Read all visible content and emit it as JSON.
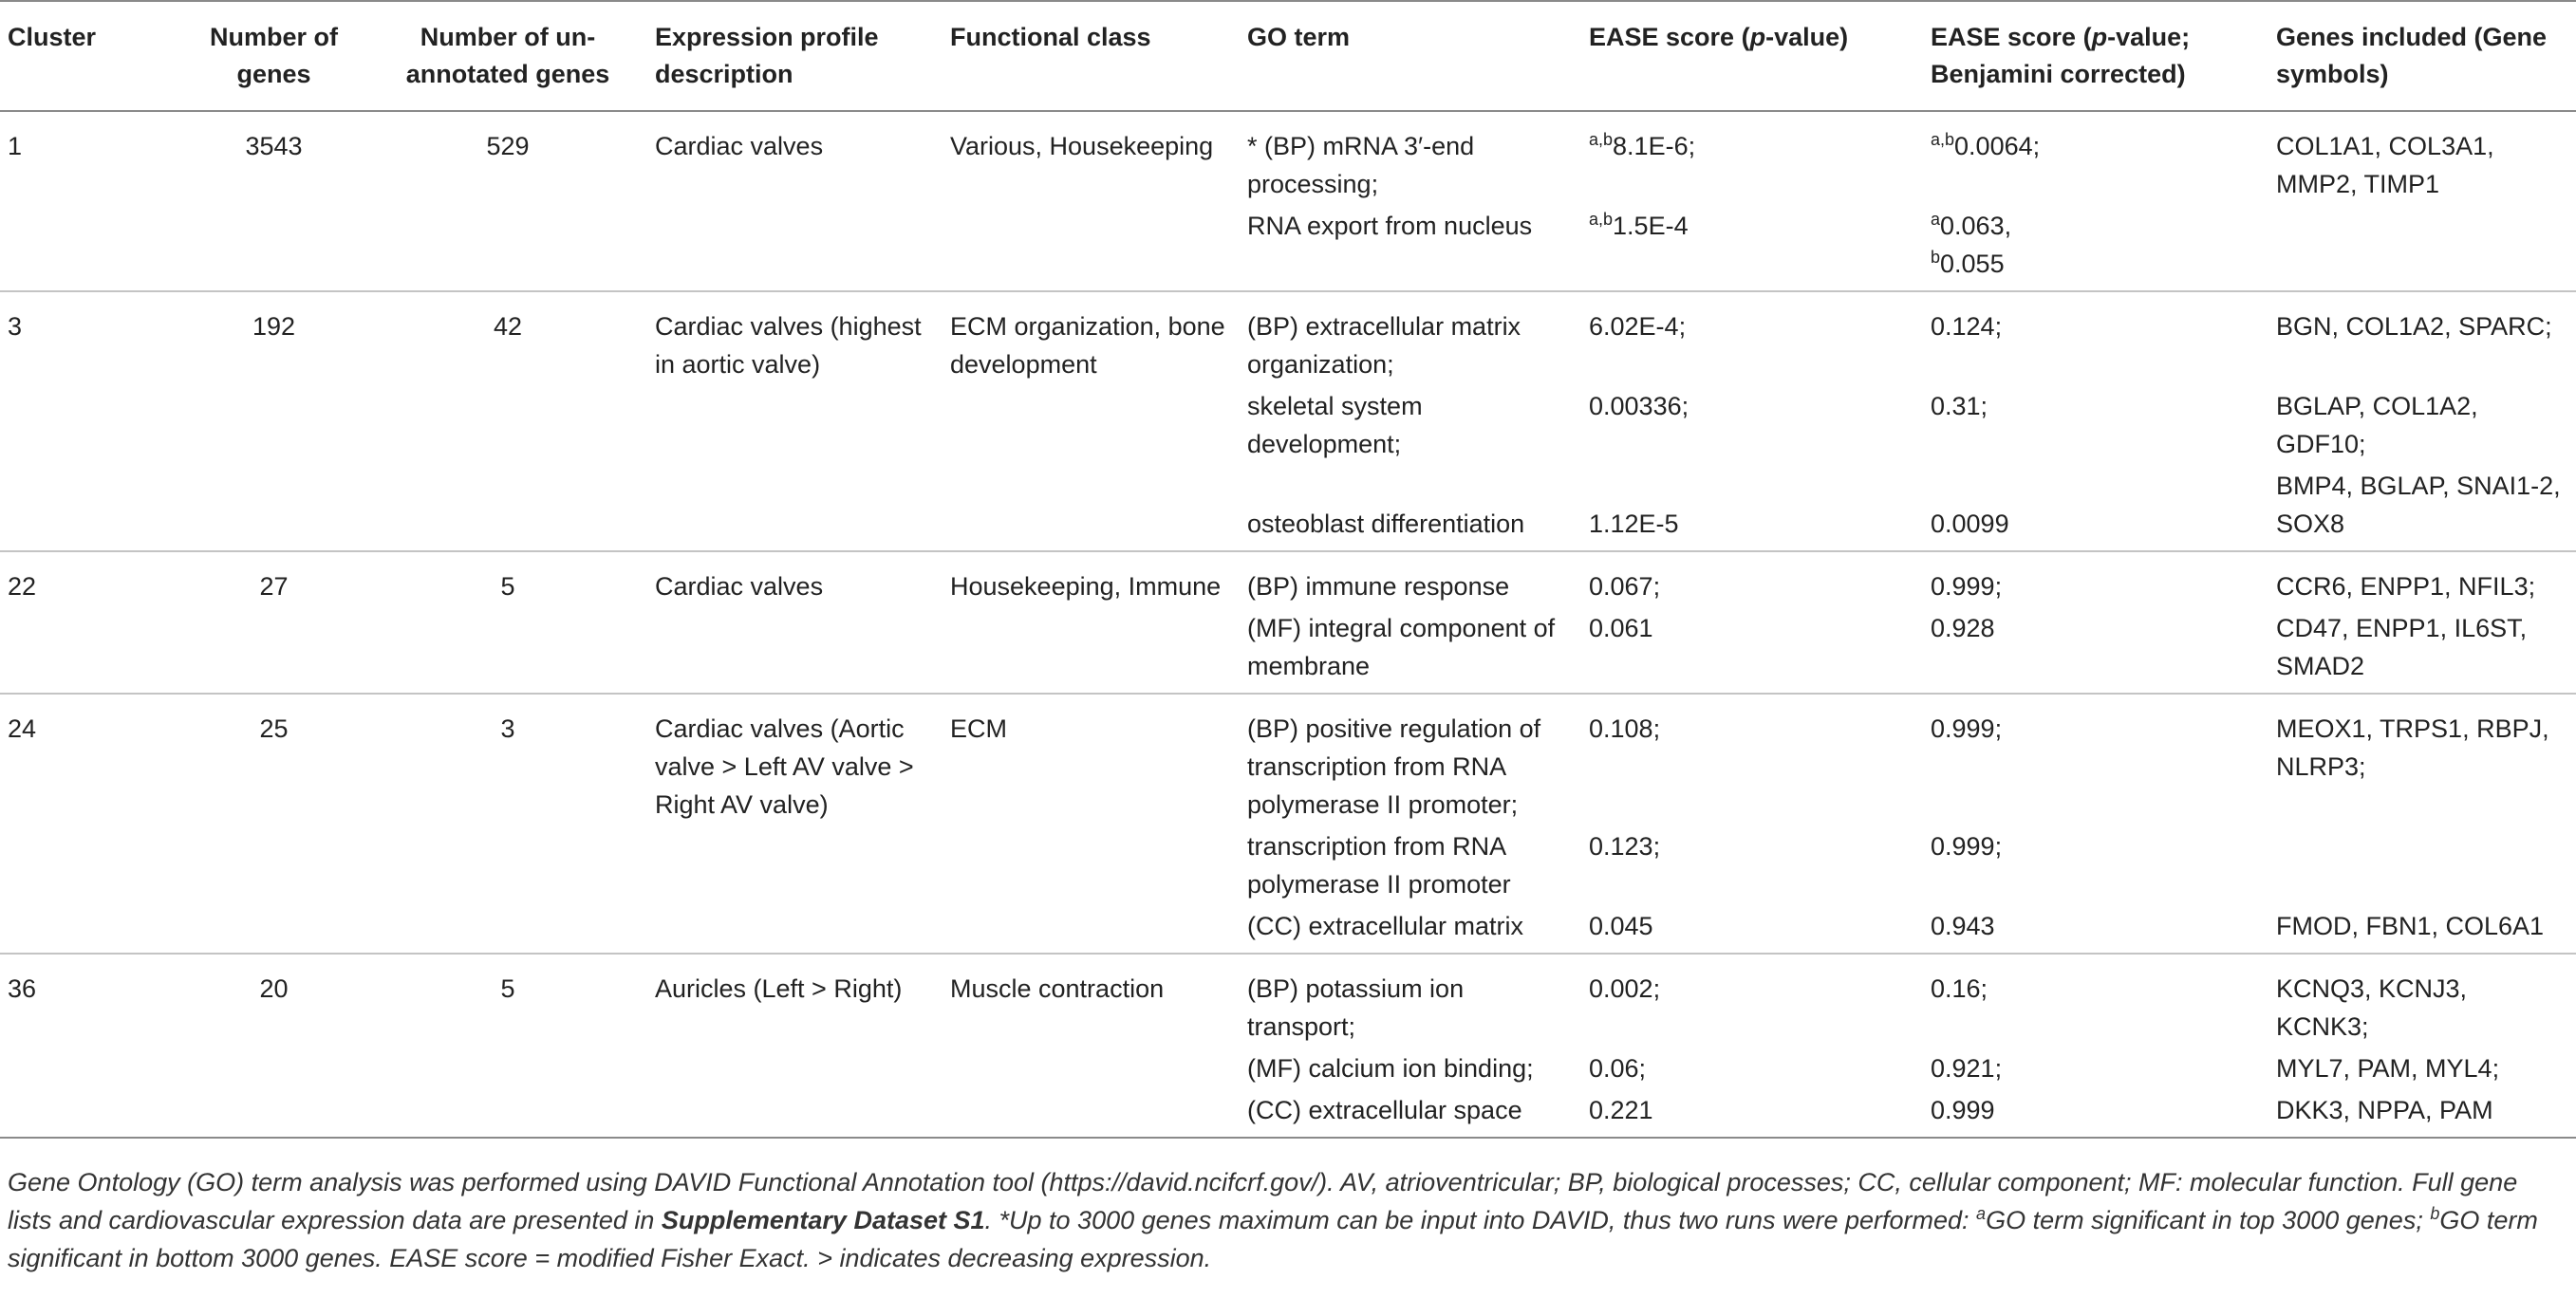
{
  "headers": {
    "cluster": "Cluster",
    "num_genes": "Number of genes",
    "unannotated": "Number of un-annotated genes",
    "profile": "Expression profile description",
    "functional_class": "Functional class",
    "go_term": "GO term",
    "ease_prefix": "EASE score (",
    "ease_p": "p",
    "ease_suffix": "-value)",
    "ease_b_prefix": "EASE score (",
    "ease_b_p": "p",
    "ease_b_suffix": "-value; Benjamini corrected)",
    "genes": "Genes included (Gene symbols)"
  },
  "rows": {
    "c1": {
      "cluster": "1",
      "num_genes": "3543",
      "unannotated": "529",
      "profile": "Cardiac valves",
      "functional_class": "Various, Housekeeping",
      "r1": {
        "go": "* (BP) mRNA 3′-end processing;",
        "ease_sup": "a,b",
        "ease": "8.1E-6;",
        "benj_sup": "a,b",
        "benj": "0.0064;",
        "genes": "COL1A1, COL3A1, MMP2, TIMP1"
      },
      "r2": {
        "go": "RNA export from nucleus",
        "ease_sup": "a,b",
        "ease": "1.5E-4",
        "benj_a_sup": "a",
        "benj_a": "0.063,",
        "benj_b_sup": "b",
        "benj_b": "0.055"
      }
    },
    "c3": {
      "cluster": "3",
      "num_genes": "192",
      "unannotated": "42",
      "profile": "Cardiac valves (highest in aortic valve)",
      "functional_class": "ECM organization, bone development",
      "r1": {
        "go": "(BP) extracellular matrix organization;",
        "ease": "6.02E-4;",
        "benj": "0.124;",
        "genes": "BGN, COL1A2, SPARC;"
      },
      "r2": {
        "go": "skeletal system development;",
        "ease": "0.00336;",
        "benj": "0.31;",
        "genes": "BGLAP, COL1A2, GDF10;"
      },
      "r3": {
        "go": "osteoblast differentiation",
        "ease": "1.12E-5",
        "benj": "0.0099",
        "genes": "BMP4, BGLAP, SNAI1-2, SOX8"
      }
    },
    "c22": {
      "cluster": "22",
      "num_genes": "27",
      "unannotated": "5",
      "profile": "Cardiac valves",
      "functional_class": "Housekeeping, Immune",
      "r1": {
        "go": "(BP) immune response",
        "ease": "0.067;",
        "benj": "0.999;",
        "genes": "CCR6, ENPP1, NFIL3;"
      },
      "r2": {
        "go": "(MF) integral component of membrane",
        "ease": "0.061",
        "benj": "0.928",
        "genes": "CD47, ENPP1, IL6ST, SMAD2"
      }
    },
    "c24": {
      "cluster": "24",
      "num_genes": "25",
      "unannotated": "3",
      "profile": "Cardiac valves (Aortic valve > Left AV valve > Right AV valve)",
      "functional_class": "ECM",
      "r1": {
        "go": "(BP) positive regulation of transcription from RNA polymerase II promoter;",
        "ease": "0.108;",
        "benj": "0.999;",
        "genes": "MEOX1, TRPS1, RBPJ, NLRP3;"
      },
      "r2": {
        "go": "transcription from RNA polymerase II promoter",
        "ease": "0.123;",
        "benj": "0.999;",
        "genes": ""
      },
      "r3": {
        "go": "(CC) extracellular matrix",
        "ease": "0.045",
        "benj": "0.943",
        "genes": "FMOD, FBN1, COL6A1"
      }
    },
    "c36": {
      "cluster": "36",
      "num_genes": "20",
      "unannotated": "5",
      "profile": "Auricles (Left > Right)",
      "functional_class": "Muscle contraction",
      "r1": {
        "go": "(BP) potassium ion transport;",
        "ease": "0.002;",
        "benj": "0.16;",
        "genes": "KCNQ3, KCNJ3, KCNK3;"
      },
      "r2": {
        "go": "(MF) calcium ion binding;",
        "ease": "0.06;",
        "benj": "0.921;",
        "genes": "MYL7, PAM, MYL4;"
      },
      "r3": {
        "go": "(CC) extracellular space",
        "ease": "0.221",
        "benj": "0.999",
        "genes": "DKK3, NPPA, PAM"
      }
    }
  },
  "footnote": {
    "part1": "Gene Ontology (GO) term analysis was performed using DAVID Functional Annotation tool (https://david.ncifcrf.gov/). AV, atrioventricular; BP, biological processes; CC, cellular component; MF: molecular function. Full gene lists and cardiovascular expression data are presented in ",
    "bold": "Supplementary Dataset S1",
    "part2": ". *Up to 3000 genes maximum can be input into DAVID, thus two runs were performed: ",
    "sup_a": "a",
    "part3": "GO term significant in top 3000 genes; ",
    "sup_b": "b",
    "part4": "GO term significant in bottom 3000 genes. EASE score = modified Fisher Exact. > indicates decreasing expression."
  }
}
